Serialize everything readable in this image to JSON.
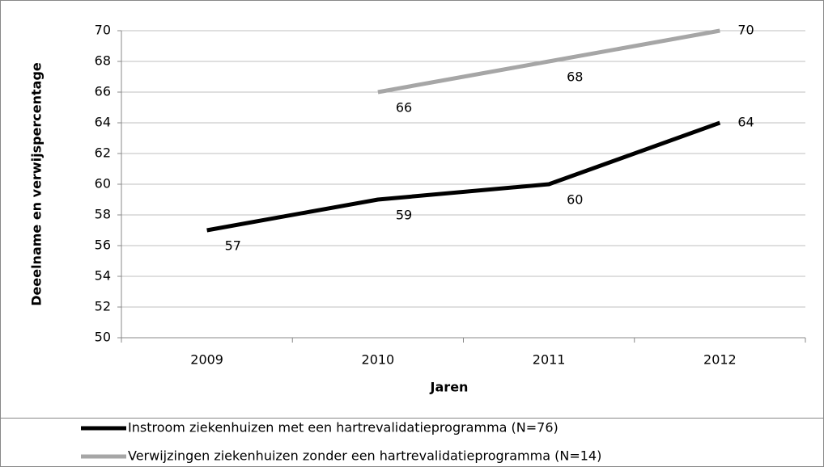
{
  "chart_data": {
    "type": "line",
    "categories": [
      "2009",
      "2010",
      "2011",
      "2012"
    ],
    "series": [
      {
        "name": "Instroom ziekenhuizen met een hartrevalidatieprogramma (N=76)",
        "color": "#000000",
        "values": [
          57,
          59,
          60,
          64
        ]
      },
      {
        "name": "Verwijzingen ziekenhuizen zonder een hartrevalidatieprogramma (N=14)",
        "color": "#a6a6a6",
        "values": [
          null,
          66,
          68,
          70
        ]
      }
    ],
    "xlabel": "Jaren",
    "ylabel": "Deeelname en verwijspercentage",
    "ylim": [
      50,
      70
    ],
    "yticks": [
      50,
      52,
      54,
      56,
      58,
      60,
      62,
      64,
      66,
      68,
      70
    ],
    "grid": true,
    "legend": "bottom"
  }
}
